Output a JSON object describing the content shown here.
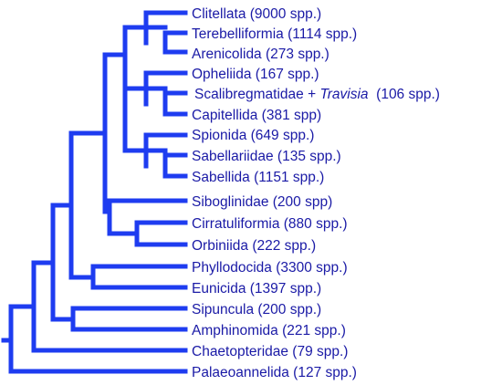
{
  "colors": {
    "branch": "#1e3cf0",
    "label": "#1a1aa6",
    "background": "#ffffff"
  },
  "taxa": [
    {
      "id": "clitellata",
      "label": "Clitellata (9000 spp.)"
    },
    {
      "id": "terebelliformia",
      "label": "Terebelliformia (1114 spp.)"
    },
    {
      "id": "arenicolida",
      "label": "Arenicolida (273 spp.)"
    },
    {
      "id": "opheliida",
      "label": "Opheliida (167 spp.)"
    },
    {
      "id": "scalibregmatidae",
      "label_prefix": "Scalibregmatidae + ",
      "label_italic": "Travisia",
      "label_suffix": "  (106 spp.)"
    },
    {
      "id": "capitellida",
      "label": "Capitellida (381 spp)"
    },
    {
      "id": "spionida",
      "label": "Spionida (649 spp.)"
    },
    {
      "id": "sabellariidae",
      "label": "Sabellariidae (135 spp.)"
    },
    {
      "id": "sabellida",
      "label": "Sabellida (1151 spp.)"
    },
    {
      "id": "siboglinidae",
      "label": "Siboglinidae (200 spp)"
    },
    {
      "id": "cirratuliformia",
      "label": "Cirratuliformia (880 spp.)"
    },
    {
      "id": "orbiniida",
      "label": "Orbiniida (222 spp.)"
    },
    {
      "id": "phyllodocida",
      "label": "Phyllodocida (3300 spp.)"
    },
    {
      "id": "eunicida",
      "label": "Eunicida (1397 spp.)"
    },
    {
      "id": "sipuncula",
      "label": "Sipuncula (200 spp.)"
    },
    {
      "id": "amphinomida",
      "label": "Amphinomida (221 spp.)"
    },
    {
      "id": "chaetopteridae",
      "label": "Chaetopteridae (79 spp.)"
    },
    {
      "id": "palaeoannelida",
      "label": "Palaeoannelida (127 spp.)"
    }
  ]
}
